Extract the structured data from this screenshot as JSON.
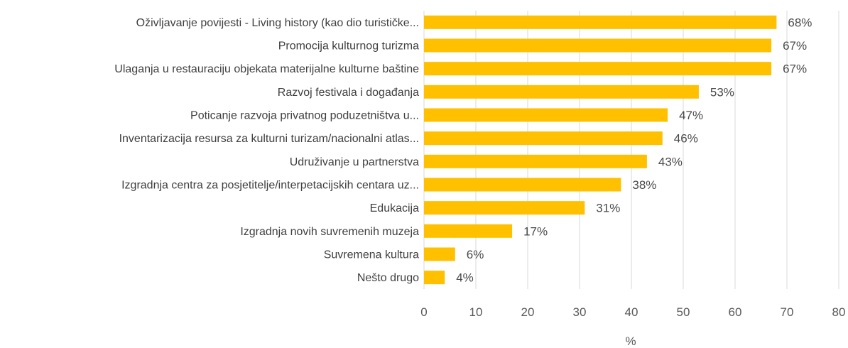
{
  "chart_data": {
    "type": "bar",
    "orientation": "horizontal",
    "categories": [
      "Oživljavanje povijesti - Living history (kao dio turističke...",
      "Promocija kulturnog turizma",
      "Ulaganja u restauraciju objekata materijalne kulturne baštine",
      "Razvoj festivala i događanja",
      "Poticanje razvoja privatnog poduzetništva u...",
      "Inventarizacija resursa za kulturni turizam/nacionalni atlas...",
      "Udruživanje u partnerstva",
      "Izgradnja centra za posjetitelje/interpetacijskih centara uz...",
      "Edukacija",
      "Izgradnja novih suvremenih muzeja",
      "Suvremena kultura",
      "Nešto drugo"
    ],
    "values": [
      68,
      67,
      67,
      53,
      47,
      46,
      43,
      38,
      31,
      17,
      6,
      4
    ],
    "value_labels": [
      "68%",
      "67%",
      "67%",
      "53%",
      "47%",
      "46%",
      "43%",
      "38%",
      "31%",
      "17%",
      "6%",
      "4%"
    ],
    "xlabel": "%",
    "xlim": [
      0,
      80
    ],
    "xticks": [
      "0",
      "10",
      "20",
      "30",
      "40",
      "50",
      "60",
      "70",
      "80"
    ],
    "grid": "vertical",
    "legend": "none",
    "bar_color": "#FFC000"
  }
}
